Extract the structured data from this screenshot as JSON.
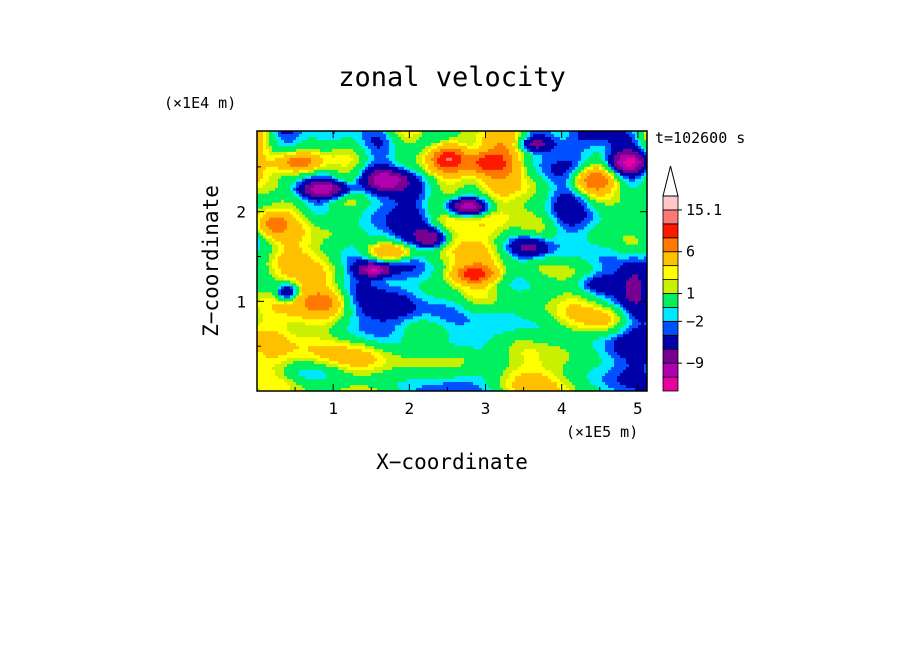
{
  "chart_data": {
    "type": "heatmap",
    "title": "zonal velocity",
    "xlabel": "X−coordinate",
    "ylabel": "Z−coordinate",
    "x_unit": "(×1E5 m)",
    "y_unit": "(×1E4 m)",
    "time_label": "t=102600 s",
    "xlim": [
      0,
      5.12
    ],
    "ylim": [
      0,
      2.9
    ],
    "x_ticks": [
      1,
      2,
      3,
      4,
      5
    ],
    "x_tick_labels": [
      "1",
      "2",
      "3",
      "4",
      "5"
    ],
    "y_ticks": [
      1,
      2
    ],
    "y_tick_labels": [
      "1",
      "2"
    ],
    "colorbar": {
      "levels": [
        -15.1,
        -12,
        -9,
        -6,
        -3,
        -2,
        -1,
        1,
        2,
        3,
        6,
        9,
        12,
        15.1
      ],
      "colors": [
        "#e800a0",
        "#b000b0",
        "#780090",
        "#0000a8",
        "#0050ff",
        "#00e8ff",
        "#00f060",
        "#c8f000",
        "#ffff00",
        "#ffc000",
        "#ff7800",
        "#ff1800",
        "#ff7878",
        "#ffc8c8"
      ],
      "extend_max_color": "#ffffff",
      "labels": [
        {
          "value": 15.1,
          "text": "15.1"
        },
        {
          "value": 6,
          "text": "6"
        },
        {
          "value": 1,
          "text": "1"
        },
        {
          "value": -2,
          "text": "−2"
        },
        {
          "value": -9,
          "text": "−9"
        }
      ]
    },
    "grid": false
  }
}
